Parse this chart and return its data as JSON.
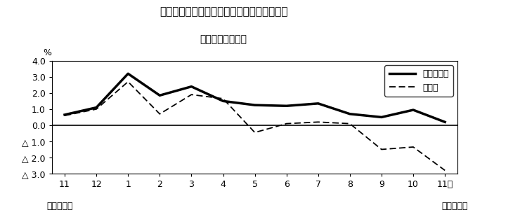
{
  "title_line1": "第３図　常用雇用指数　対前年同月比の推移",
  "title_line2": "（規樯５人以上）",
  "xlabel_left": "平成２２年",
  "xlabel_right": "平成２３年",
  "x_labels": [
    "11",
    "12",
    "1",
    "2",
    "3",
    "4",
    "5",
    "6",
    "7",
    "8",
    "9",
    "10",
    "11月"
  ],
  "x_values": [
    0,
    1,
    2,
    3,
    4,
    5,
    6,
    7,
    8,
    9,
    10,
    11,
    12
  ],
  "solid_line": [
    0.65,
    1.1,
    3.2,
    1.85,
    2.4,
    1.5,
    1.25,
    1.2,
    1.35,
    0.7,
    0.5,
    0.95,
    0.2
  ],
  "dashed_line": [
    0.6,
    1.0,
    2.7,
    0.7,
    1.9,
    1.65,
    -0.45,
    0.1,
    0.2,
    0.1,
    -1.5,
    -1.35,
    -2.8
  ],
  "ylim_min": -3.0,
  "ylim_max": 4.0,
  "yticks": [
    4.0,
    3.0,
    2.0,
    1.0,
    0.0,
    -1.0,
    -2.0,
    -3.0
  ],
  "ytick_labels": [
    "4.0",
    "3.0",
    "2.0",
    "1.0",
    "0.0",
    "△ 1.0",
    "△ 2.0",
    "△ 3.0"
  ],
  "legend_solid": "調査産業計",
  "legend_dashed": "製造業",
  "percent_label": "%",
  "background_color": "#ffffff",
  "line_color": "#000000"
}
